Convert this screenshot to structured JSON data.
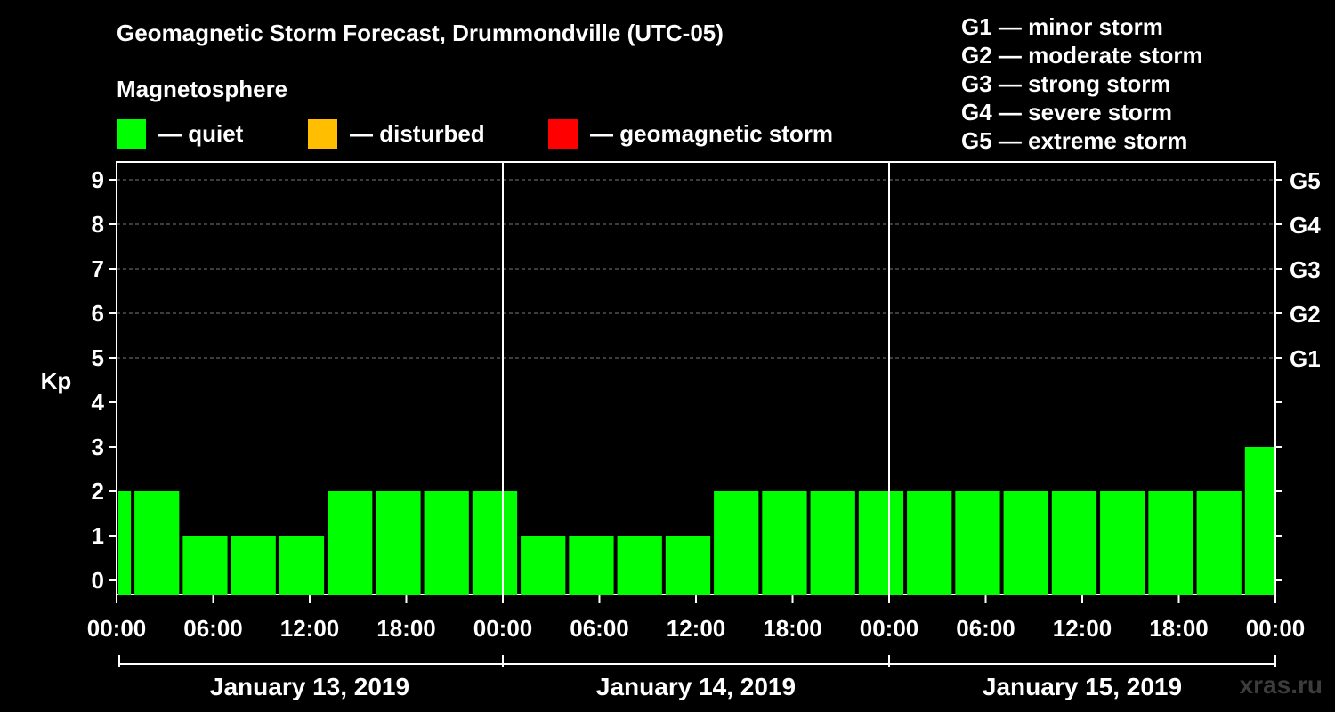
{
  "title": "Geomagnetic Storm Forecast, Drummondville (UTC-05)",
  "subtitle": "Magnetosphere",
  "legend": [
    {
      "label": "— quiet",
      "color": "#00ff00"
    },
    {
      "label": "— disturbed",
      "color": "#ffbf00"
    },
    {
      "label": "— geomagnetic storm",
      "color": "#ff0000"
    }
  ],
  "storm_scale": [
    "G1 — minor storm",
    "G2 — moderate storm",
    "G3 — strong storm",
    "G4 — severe storm",
    "G5 — extreme storm"
  ],
  "watermark": "xras.ru",
  "chart_data": {
    "type": "bar",
    "title": "Geomagnetic Storm Forecast, Drummondville (UTC-05)",
    "ylabel": "Kp",
    "ylim": [
      0,
      9
    ],
    "yticks": [
      0,
      1,
      2,
      3,
      4,
      5,
      6,
      7,
      8,
      9
    ],
    "right_ticks": [
      {
        "kp": 5,
        "label": "G1"
      },
      {
        "kp": 6,
        "label": "G2"
      },
      {
        "kp": 7,
        "label": "G3"
      },
      {
        "kp": 8,
        "label": "G4"
      },
      {
        "kp": 9,
        "label": "G5"
      }
    ],
    "xlim_hours": [
      0,
      72
    ],
    "xtick_labels": [
      "00:00",
      "06:00",
      "12:00",
      "18:00",
      "00:00",
      "06:00",
      "12:00",
      "18:00",
      "00:00",
      "06:00",
      "12:00",
      "18:00",
      "00:00"
    ],
    "days": [
      "January 13, 2019",
      "January 14, 2019",
      "January 15, 2019"
    ],
    "day_separators_hours": [
      24,
      48
    ],
    "bars": [
      {
        "start": 0,
        "end": 1,
        "kp": 2,
        "level": "quiet"
      },
      {
        "start": 1,
        "end": 4,
        "kp": 2,
        "level": "quiet"
      },
      {
        "start": 4,
        "end": 7,
        "kp": 1,
        "level": "quiet"
      },
      {
        "start": 7,
        "end": 10,
        "kp": 1,
        "level": "quiet"
      },
      {
        "start": 10,
        "end": 13,
        "kp": 1,
        "level": "quiet"
      },
      {
        "start": 13,
        "end": 16,
        "kp": 2,
        "level": "quiet"
      },
      {
        "start": 16,
        "end": 19,
        "kp": 2,
        "level": "quiet"
      },
      {
        "start": 19,
        "end": 22,
        "kp": 2,
        "level": "quiet"
      },
      {
        "start": 22,
        "end": 25,
        "kp": 2,
        "level": "quiet"
      },
      {
        "start": 25,
        "end": 28,
        "kp": 1,
        "level": "quiet"
      },
      {
        "start": 28,
        "end": 31,
        "kp": 1,
        "level": "quiet"
      },
      {
        "start": 31,
        "end": 34,
        "kp": 1,
        "level": "quiet"
      },
      {
        "start": 34,
        "end": 37,
        "kp": 1,
        "level": "quiet"
      },
      {
        "start": 37,
        "end": 40,
        "kp": 2,
        "level": "quiet"
      },
      {
        "start": 40,
        "end": 43,
        "kp": 2,
        "level": "quiet"
      },
      {
        "start": 43,
        "end": 46,
        "kp": 2,
        "level": "quiet"
      },
      {
        "start": 46,
        "end": 49,
        "kp": 2,
        "level": "quiet"
      },
      {
        "start": 49,
        "end": 52,
        "kp": 2,
        "level": "quiet"
      },
      {
        "start": 52,
        "end": 55,
        "kp": 2,
        "level": "quiet"
      },
      {
        "start": 55,
        "end": 58,
        "kp": 2,
        "level": "quiet"
      },
      {
        "start": 58,
        "end": 61,
        "kp": 2,
        "level": "quiet"
      },
      {
        "start": 61,
        "end": 64,
        "kp": 2,
        "level": "quiet"
      },
      {
        "start": 64,
        "end": 67,
        "kp": 2,
        "level": "quiet"
      },
      {
        "start": 67,
        "end": 70,
        "kp": 2,
        "level": "quiet"
      },
      {
        "start": 70,
        "end": 72,
        "kp": 3,
        "level": "quiet"
      }
    ]
  }
}
